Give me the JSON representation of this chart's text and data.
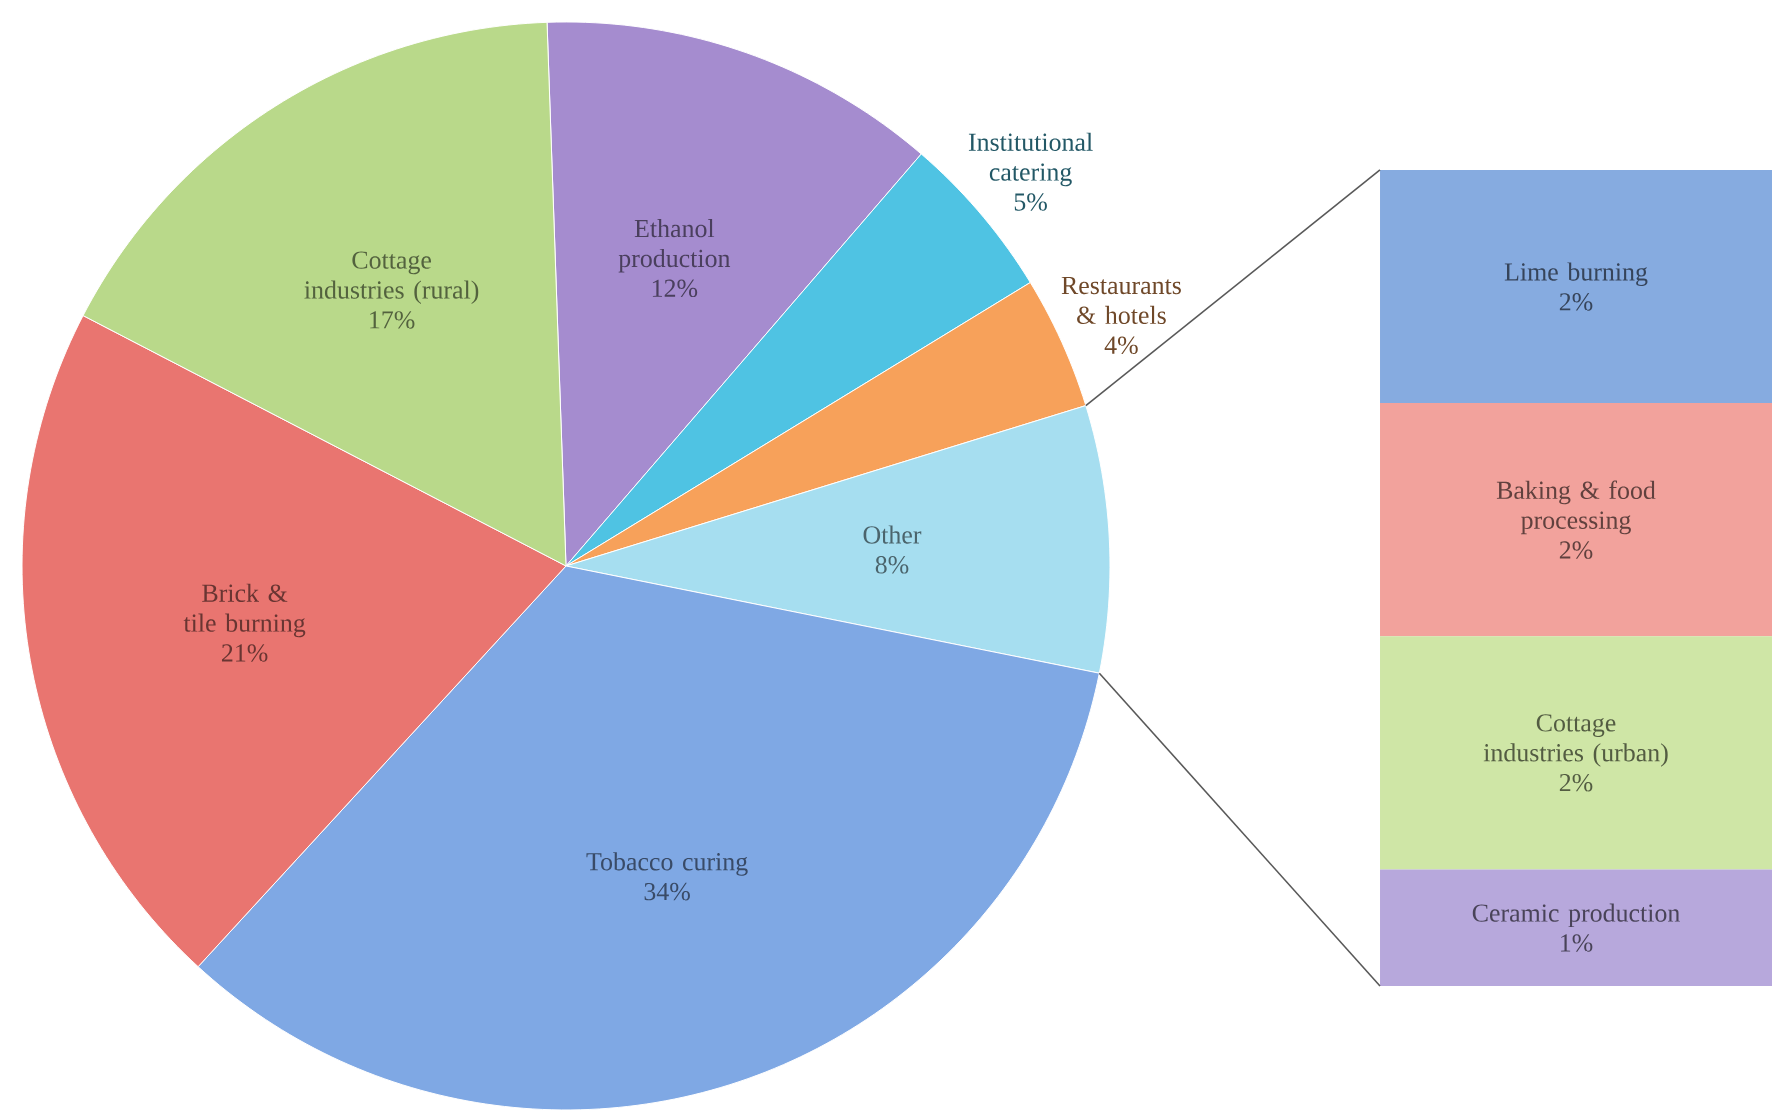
{
  "chart_data": [
    {
      "type": "pie",
      "categories": [
        "Ethanol production",
        "Institutional catering",
        "Restaurants & hotels",
        "Other",
        "Tobacco curing",
        "Brick & tile burning",
        "Cottage industries (rural)"
      ],
      "values": [
        12,
        5,
        4,
        8,
        34,
        21,
        17
      ],
      "value_labels": [
        "12%",
        "5%",
        "4%",
        "8%",
        "34%",
        "21%",
        "17%"
      ],
      "colors": [
        "#a58ccf",
        "#4fc3e3",
        "#f7a15a",
        "#a6def0",
        "#7fa8e4",
        "#e97570",
        "#b9d98a"
      ]
    },
    {
      "type": "bar",
      "stacked": true,
      "categories": [
        null
      ],
      "series": [
        {
          "name": "Ceramic production",
          "color": "#b7a8dc",
          "values": [
            1
          ],
          "value_labels": [
            "1%"
          ]
        },
        {
          "name": "Cottage industries (urban)",
          "color": "#cfe6a6",
          "values": [
            2
          ],
          "value_labels": [
            "2%"
          ]
        },
        {
          "name": "Baking & food processing",
          "color": "#f2a29c",
          "values": [
            2
          ],
          "value_labels": [
            "2%"
          ]
        },
        {
          "name": "Lime burning",
          "color": "#86abe0",
          "values": [
            2
          ],
          "value_labels": [
            "2%"
          ]
        }
      ]
    }
  ]
}
